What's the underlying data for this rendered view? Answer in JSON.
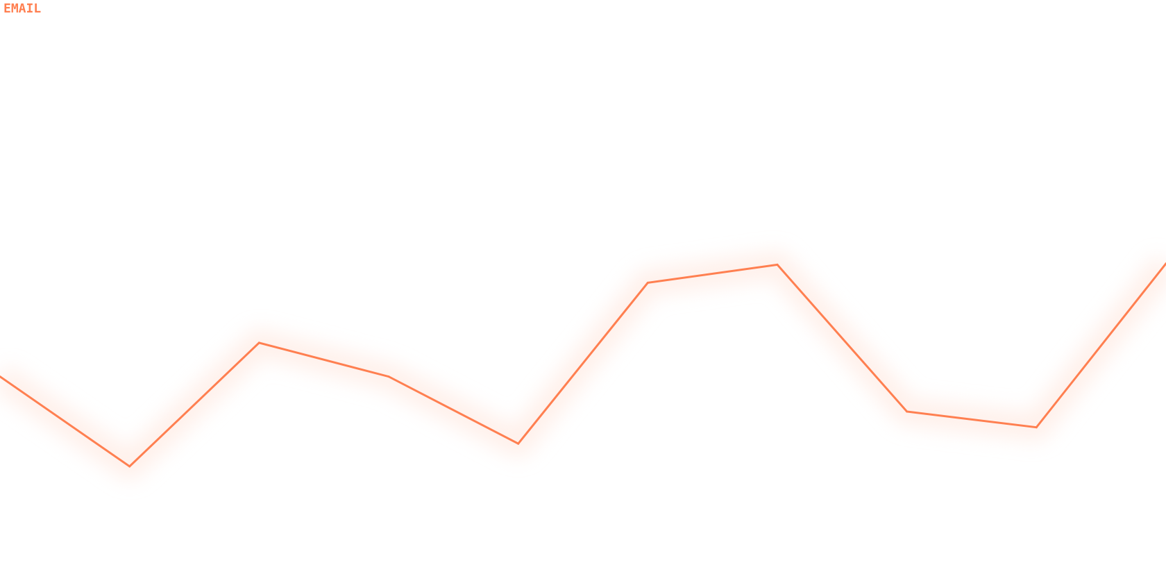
{
  "chart_data": {
    "type": "line",
    "title": "EMAIL",
    "xlabel": "",
    "ylabel": "",
    "ylim": [
      0,
      100
    ],
    "grid": false,
    "series": [
      {
        "values": [
          35.4,
          20.0,
          41.2,
          35.4,
          23.9,
          51.5,
          54.6,
          29.4,
          26.7,
          54.8
        ]
      }
    ],
    "colors": {
      "line": "#ff7f50",
      "glow": "#ffe4da"
    }
  }
}
